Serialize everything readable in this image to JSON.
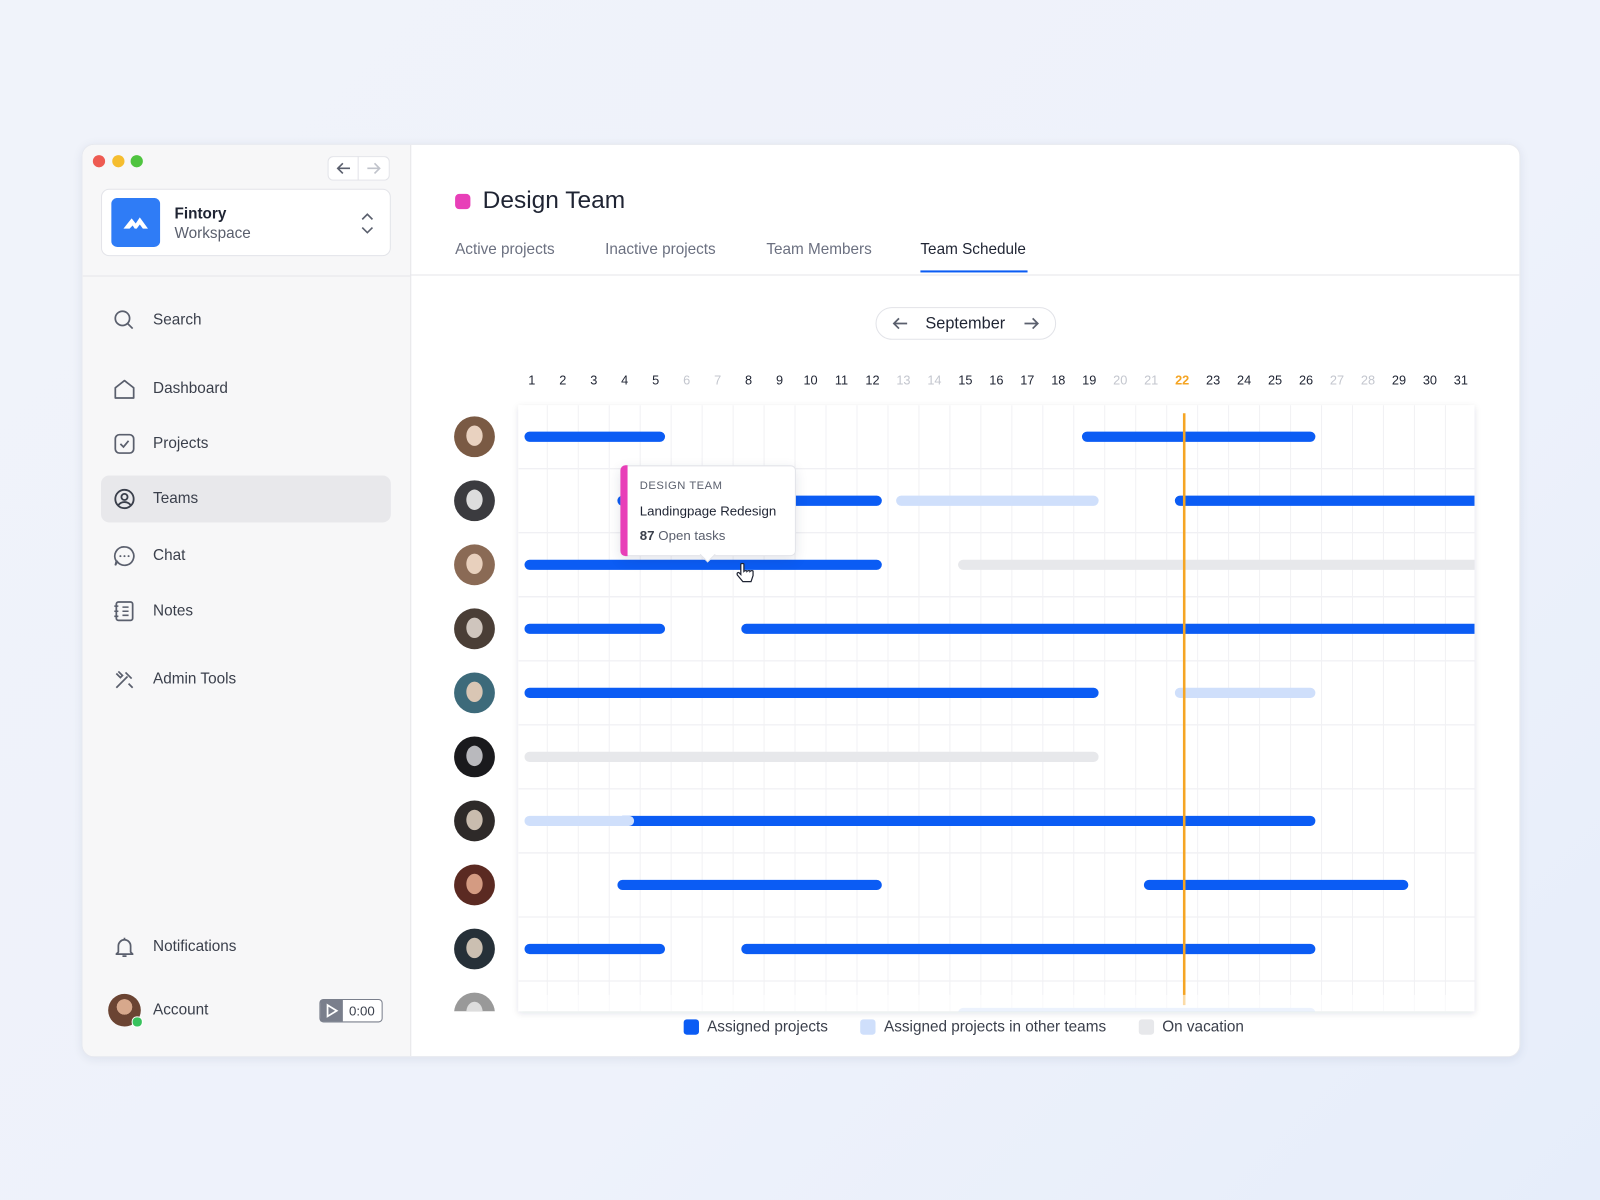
{
  "workspace": {
    "name": "Fintory",
    "subtitle": "Workspace"
  },
  "nav": [
    {
      "label": "Search"
    },
    {
      "label": "Dashboard"
    },
    {
      "label": "Projects"
    },
    {
      "label": "Teams",
      "active": true
    },
    {
      "label": "Chat"
    },
    {
      "label": "Notes"
    },
    {
      "label": "Admin Tools"
    }
  ],
  "footer": {
    "notifications": "Notifications",
    "account": "Account",
    "timer": "0:00"
  },
  "header": {
    "title": "Design Team",
    "color": "#e83fb8",
    "tabs": [
      {
        "label": "Active projects"
      },
      {
        "label": "Inactive projects"
      },
      {
        "label": "Team Members"
      },
      {
        "label": "Team Schedule",
        "active": true
      }
    ]
  },
  "schedule": {
    "month": "September",
    "days": [
      1,
      2,
      3,
      4,
      5,
      6,
      7,
      8,
      9,
      10,
      11,
      12,
      13,
      14,
      15,
      16,
      17,
      18,
      19,
      20,
      21,
      22,
      23,
      24,
      25,
      26,
      27,
      28,
      29,
      30,
      31
    ],
    "weekends": [
      6,
      7,
      13,
      14,
      20,
      21,
      27,
      28
    ],
    "today": 22,
    "legend": [
      {
        "name": "Assigned projects",
        "color": "#0b5cf4",
        "rows": [
          [
            [
              1,
              5
            ],
            [
              19,
              26
            ]
          ],
          [
            [
              4,
              12
            ],
            [
              22,
              31
            ]
          ],
          [
            [
              1,
              12
            ]
          ],
          [
            [
              1,
              5
            ],
            [
              8,
              31
            ]
          ],
          [
            [
              1,
              19
            ]
          ],
          [],
          [
            [
              4,
              26
            ]
          ],
          [
            [
              4,
              12
            ],
            [
              21,
              29
            ]
          ],
          [
            [
              1,
              5
            ],
            [
              8,
              26
            ]
          ],
          []
        ]
      },
      {
        "name": "Assigned projects in other teams",
        "color": "#cfdffb",
        "rows": [
          [],
          [
            [
              13,
              19
            ]
          ],
          [],
          [],
          [
            [
              22,
              26
            ]
          ],
          [],
          [
            [
              1,
              4
            ]
          ],
          [],
          [],
          [
            [
              15,
              26
            ]
          ]
        ]
      },
      {
        "name": "On vacation",
        "color": "#e7e8eb",
        "rows": [
          [],
          [],
          [
            [
              15,
              31
            ]
          ],
          [],
          [],
          [
            [
              1,
              19
            ]
          ],
          [],
          [],
          [],
          []
        ]
      }
    ]
  },
  "tooltip": {
    "team": "DESIGN TEAM",
    "project": "Landingpage Redesign",
    "count": 87,
    "count_label": "Open tasks"
  }
}
